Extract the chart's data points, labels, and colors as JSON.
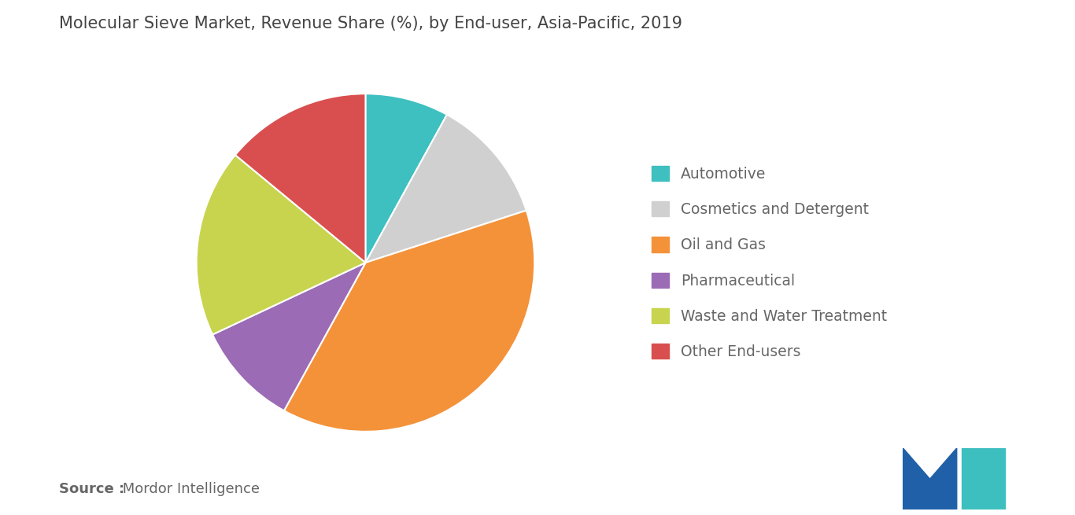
{
  "title": "Molecular Sieve Market, Revenue Share (%), by End-user, Asia-Pacific, 2019",
  "slices": [
    {
      "label": "Automotive",
      "value": 8,
      "color": "#3ebfc0"
    },
    {
      "label": "Cosmetics and Detergent",
      "value": 12,
      "color": "#d0d0d0"
    },
    {
      "label": "Oil and Gas",
      "value": 38,
      "color": "#f4923a"
    },
    {
      "label": "Pharmaceutical",
      "value": 10,
      "color": "#9b6bb5"
    },
    {
      "label": "Waste and Water Treatment",
      "value": 18,
      "color": "#c8d44e"
    },
    {
      "label": "Other End-users",
      "value": 14,
      "color": "#d94f4f"
    }
  ],
  "source_bold": "Source :",
  "source_normal": " Mordor Intelligence",
  "background_color": "#ffffff",
  "title_fontsize": 15,
  "legend_fontsize": 13.5,
  "source_fontsize": 13,
  "text_color": "#666666",
  "title_color": "#444444"
}
